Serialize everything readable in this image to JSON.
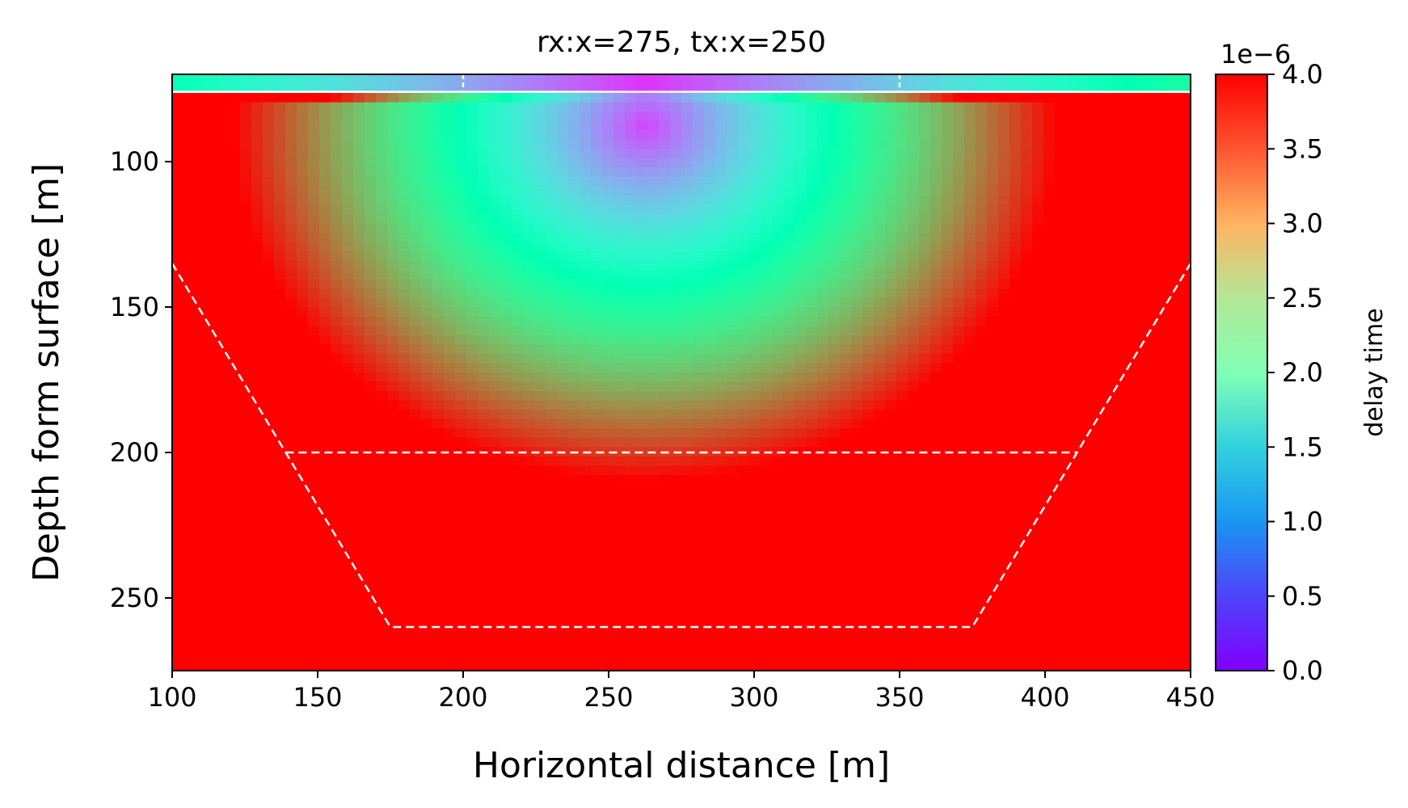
{
  "chart_data": {
    "type": "heatmap",
    "title": "rx:x=275, tx:x=250",
    "xlabel": "Horizontal distance [m]",
    "ylabel": "Depth form surface [m]",
    "xlim": [
      100,
      450
    ],
    "ylim": [
      275,
      70
    ],
    "x_ticks": [
      100,
      150,
      200,
      250,
      300,
      350,
      400,
      450
    ],
    "y_ticks": [
      100,
      150,
      200,
      250
    ],
    "colorbar": {
      "label": "delay time",
      "offset_text": "1e−6",
      "range": [
        0.0,
        4.0
      ],
      "ticks": [
        "0.0",
        "0.5",
        "1.0",
        "1.5",
        "2.0",
        "2.5",
        "3.0",
        "3.5",
        "4.0"
      ],
      "colormap": "rainbow"
    },
    "field": {
      "source_x": 262.5,
      "surface_depth": 76,
      "min_delay_region_depth": 88
    },
    "overlays": {
      "dashed_outline": [
        [
          100,
          135
        ],
        [
          139,
          200
        ],
        [
          175,
          260
        ],
        [
          375,
          260
        ],
        [
          411,
          200
        ],
        [
          450,
          135
        ]
      ],
      "dashed_level": [
        [
          139,
          200
        ],
        [
          411,
          200
        ]
      ],
      "surface_line_depth": 76,
      "surface_ticks_x": [
        200,
        350
      ]
    }
  }
}
